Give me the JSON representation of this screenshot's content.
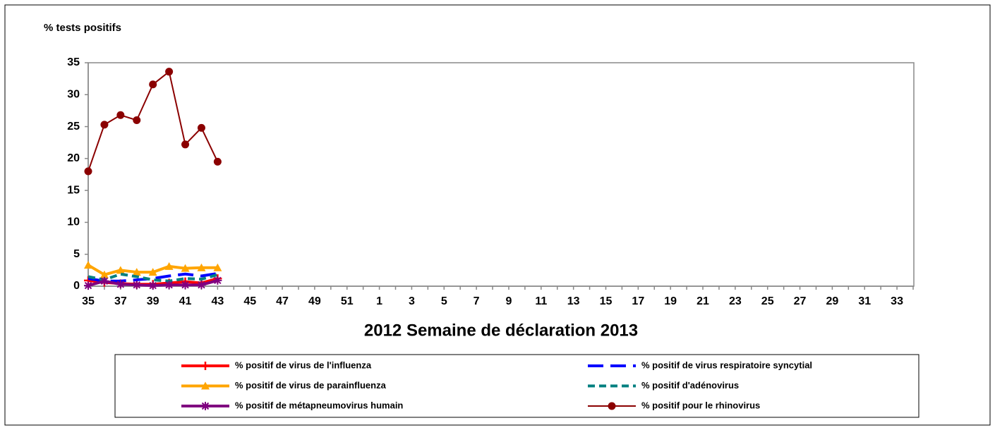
{
  "chart_data": {
    "type": "line",
    "ylabel": "% tests positifs",
    "xlabel": "2012  Semaine de déclaration   2013",
    "categories": [
      "35",
      null,
      "37",
      null,
      "39",
      null,
      "41",
      null,
      "43",
      null,
      "45",
      null,
      "47",
      null,
      "49",
      null,
      "51",
      null,
      "1",
      null,
      "3",
      null,
      "5",
      null,
      "7",
      null,
      "9",
      null,
      "11",
      null,
      "13",
      null,
      "15",
      null,
      "17",
      null,
      "19",
      null,
      "21",
      null,
      "23",
      null,
      "25",
      null,
      "27",
      null,
      "29",
      null,
      "31",
      null,
      "33",
      null
    ],
    "ylim": [
      0,
      35
    ],
    "yticks": [
      0,
      5,
      10,
      15,
      20,
      25,
      30,
      35
    ],
    "grid": false,
    "legend": "bottom",
    "series": [
      {
        "name": "% positif de virus de l'influenza",
        "color": "#ff0000",
        "line_style": "solid",
        "marker": "plus",
        "values": [
          0.9,
          0.6,
          0.4,
          0.3,
          0.3,
          0.5,
          0.7,
          0.5,
          1.2,
          null,
          null,
          null,
          null,
          null,
          null,
          null,
          null,
          null,
          null,
          null,
          null,
          null,
          null,
          null,
          null,
          null,
          null,
          null,
          null,
          null,
          null,
          null,
          null,
          null,
          null,
          null,
          null,
          null,
          null,
          null,
          null,
          null,
          null,
          null,
          null,
          null,
          null,
          null,
          null,
          null,
          null,
          null
        ]
      },
      {
        "name": "% positif de virus respiratoire syncytial",
        "color": "#0000ff",
        "line_style": "longdash",
        "marker": null,
        "values": [
          1.2,
          0.8,
          0.8,
          1.0,
          1.2,
          1.6,
          1.9,
          1.6,
          2.0,
          null,
          null,
          null,
          null,
          null,
          null,
          null,
          null,
          null,
          null,
          null,
          null,
          null,
          null,
          null,
          null,
          null,
          null,
          null,
          null,
          null,
          null,
          null,
          null,
          null,
          null,
          null,
          null,
          null,
          null,
          null,
          null,
          null,
          null,
          null,
          null,
          null,
          null,
          null,
          null,
          null,
          null,
          null
        ]
      },
      {
        "name": "% positif de virus de parainfluenza",
        "color": "#ffa500",
        "line_style": "solid",
        "marker": "triangle",
        "values": [
          3.3,
          1.8,
          2.5,
          2.2,
          2.2,
          3.1,
          2.8,
          2.9,
          2.9,
          null,
          null,
          null,
          null,
          null,
          null,
          null,
          null,
          null,
          null,
          null,
          null,
          null,
          null,
          null,
          null,
          null,
          null,
          null,
          null,
          null,
          null,
          null,
          null,
          null,
          null,
          null,
          null,
          null,
          null,
          null,
          null,
          null,
          null,
          null,
          null,
          null,
          null,
          null,
          null,
          null,
          null,
          null
        ]
      },
      {
        "name": "% positif d'adénovirus",
        "color": "#008080",
        "line_style": "dash",
        "marker": null,
        "values": [
          1.5,
          1.0,
          1.9,
          1.5,
          1.0,
          0.8,
          1.2,
          1.1,
          1.8,
          null,
          null,
          null,
          null,
          null,
          null,
          null,
          null,
          null,
          null,
          null,
          null,
          null,
          null,
          null,
          null,
          null,
          null,
          null,
          null,
          null,
          null,
          null,
          null,
          null,
          null,
          null,
          null,
          null,
          null,
          null,
          null,
          null,
          null,
          null,
          null,
          null,
          null,
          null,
          null,
          null,
          null,
          null
        ]
      },
      {
        "name": "% positif de métapneumovirus humain",
        "color": "#800080",
        "line_style": "solid",
        "marker": "star",
        "values": [
          0.1,
          0.8,
          0.3,
          0.2,
          0.1,
          0.2,
          0.2,
          0.2,
          0.9,
          null,
          null,
          null,
          null,
          null,
          null,
          null,
          null,
          null,
          null,
          null,
          null,
          null,
          null,
          null,
          null,
          null,
          null,
          null,
          null,
          null,
          null,
          null,
          null,
          null,
          null,
          null,
          null,
          null,
          null,
          null,
          null,
          null,
          null,
          null,
          null,
          null,
          null,
          null,
          null,
          null,
          null,
          null
        ]
      },
      {
        "name": "% positif pour le rhinovirus",
        "color": "#8b0000",
        "line_style": "thin",
        "marker": "circle",
        "values": [
          18.0,
          25.3,
          26.8,
          26.0,
          31.6,
          33.6,
          22.2,
          24.8,
          19.5,
          null,
          null,
          null,
          null,
          null,
          null,
          null,
          null,
          null,
          null,
          null,
          null,
          null,
          null,
          null,
          null,
          null,
          null,
          null,
          null,
          null,
          null,
          null,
          null,
          null,
          null,
          null,
          null,
          null,
          null,
          null,
          null,
          null,
          null,
          null,
          null,
          null,
          null,
          null,
          null,
          null,
          null,
          null
        ]
      }
    ]
  }
}
